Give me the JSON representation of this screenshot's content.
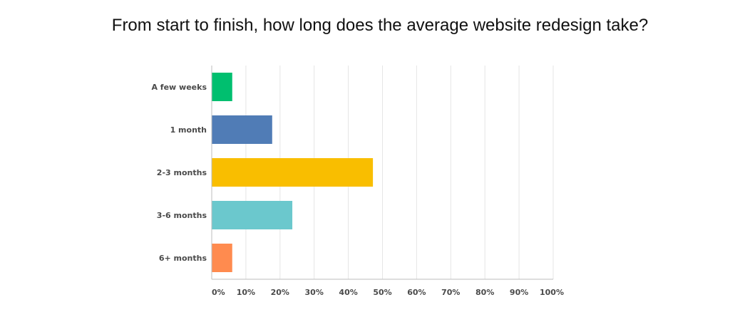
{
  "chart_data": {
    "type": "bar",
    "orientation": "horizontal",
    "title": "From start to finish, how long does the average website redesign take?",
    "xlabel": "",
    "ylabel": "",
    "xlim": [
      0,
      100
    ],
    "x_tick_labels": [
      "0%",
      "10%",
      "20%",
      "30%",
      "40%",
      "50%",
      "60%",
      "70%",
      "80%",
      "90%",
      "100%"
    ],
    "categories": [
      "A few weeks",
      "1 month",
      "2-3 months",
      "3-6 months",
      "6+ months"
    ],
    "values": [
      5.9,
      17.6,
      47.1,
      23.5,
      5.9
    ],
    "colors": [
      "#00bf6f",
      "#507cb6",
      "#f9be00",
      "#6bc8cd",
      "#ff8b4f"
    ],
    "grid": true,
    "legend": "none"
  }
}
